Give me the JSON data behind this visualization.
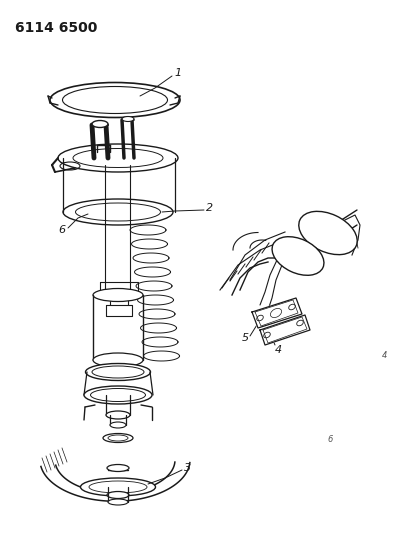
{
  "title": "6114 6500",
  "bg_color": "#ffffff",
  "line_color": "#1a1a1a",
  "title_fontsize": 10,
  "label_fontsize": 8,
  "figsize": [
    4.08,
    5.33
  ],
  "dpi": 100
}
